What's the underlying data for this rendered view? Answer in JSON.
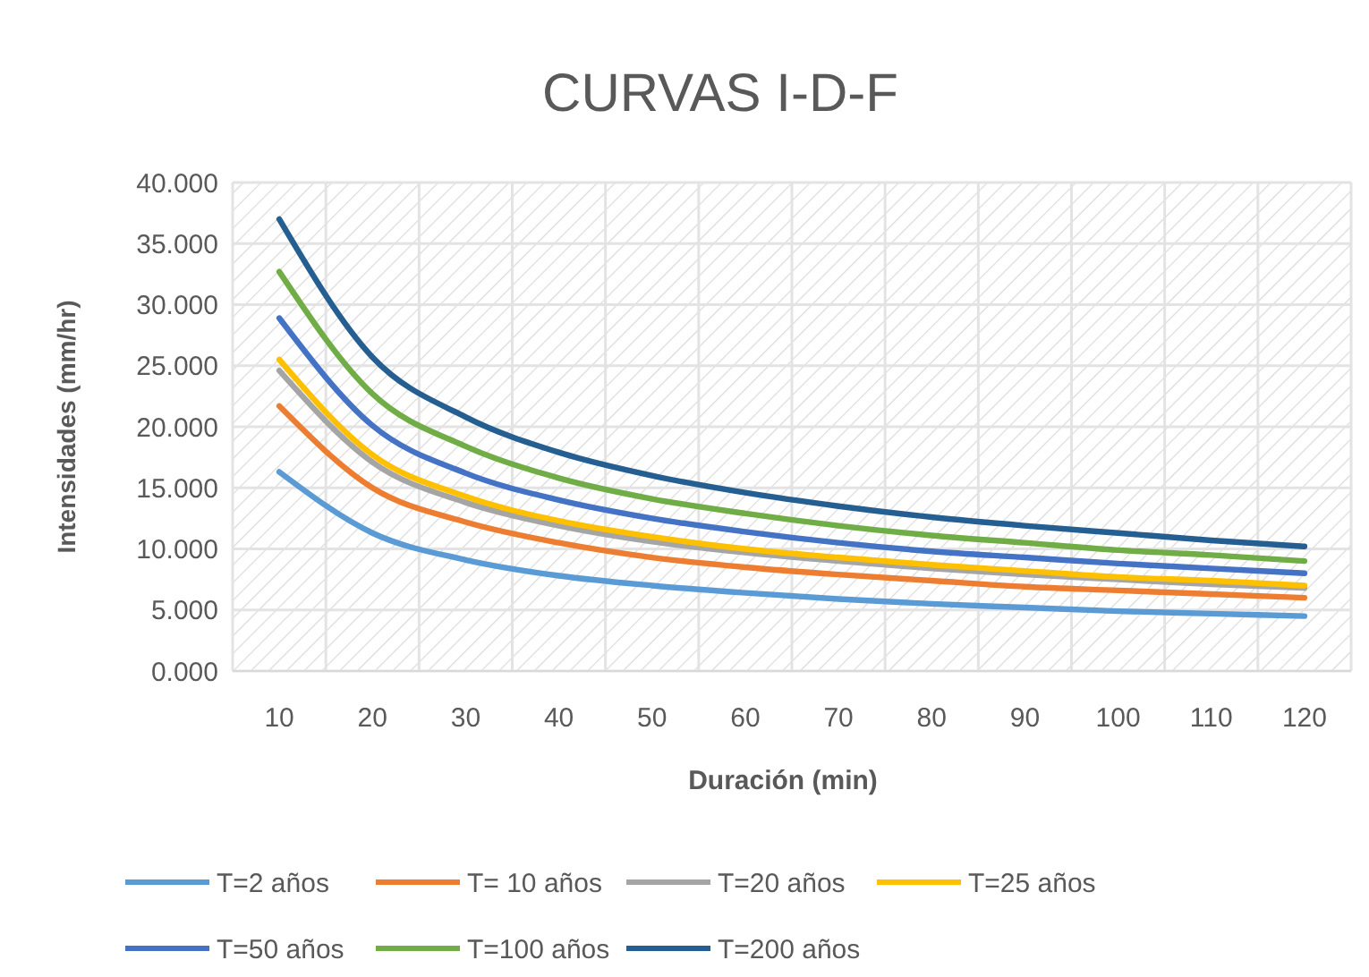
{
  "chart_data": {
    "type": "line",
    "title": "CURVAS I-D-F",
    "xlabel": "Duración (min)",
    "ylabel": "Intensidades (mm/hr)",
    "categories": [
      "10",
      "20",
      "30",
      "40",
      "50",
      "60",
      "70",
      "80",
      "90",
      "100",
      "110",
      "120"
    ],
    "series": [
      {
        "name": "T=2 años",
        "color": "#5b9bd5",
        "values": [
          16.3,
          11.3,
          9.1,
          7.8,
          7.0,
          6.4,
          5.9,
          5.5,
          5.2,
          4.9,
          4.7,
          4.5
        ]
      },
      {
        "name": "T= 10 años",
        "color": "#ed7d31",
        "values": [
          21.7,
          15.0,
          12.2,
          10.5,
          9.3,
          8.5,
          7.9,
          7.4,
          6.9,
          6.6,
          6.3,
          6.0
        ]
      },
      {
        "name": "T=20 años",
        "color": "#a5a5a5",
        "values": [
          24.6,
          17.1,
          13.8,
          11.9,
          10.6,
          9.7,
          9.0,
          8.4,
          7.9,
          7.5,
          7.1,
          6.8
        ]
      },
      {
        "name": "T=25 años",
        "color": "#ffc000",
        "values": [
          25.5,
          17.7,
          14.3,
          12.3,
          11.0,
          10.0,
          9.3,
          8.7,
          8.2,
          7.7,
          7.4,
          7.0
        ]
      },
      {
        "name": "T=50 años",
        "color": "#4472c4",
        "values": [
          28.9,
          20.1,
          16.2,
          14.0,
          12.5,
          11.4,
          10.5,
          9.8,
          9.3,
          8.8,
          8.4,
          8.0
        ]
      },
      {
        "name": "T=100 años",
        "color": "#70ad47",
        "values": [
          32.7,
          22.7,
          18.4,
          15.8,
          14.1,
          12.9,
          11.9,
          11.1,
          10.5,
          9.9,
          9.5,
          9.0
        ]
      },
      {
        "name": "T=200 años",
        "color": "#255e91",
        "values": [
          37.0,
          25.7,
          20.8,
          17.9,
          16.0,
          14.6,
          13.5,
          12.6,
          11.9,
          11.3,
          10.7,
          10.2
        ]
      }
    ],
    "ylim": [
      0,
      40
    ],
    "yticks": [
      {
        "value": 0,
        "label": "0.000"
      },
      {
        "value": 5,
        "label": "5.000"
      },
      {
        "value": 10,
        "label": "10.000"
      },
      {
        "value": 15,
        "label": "15.000"
      },
      {
        "value": 20,
        "label": "20.000"
      },
      {
        "value": 25,
        "label": "25.000"
      },
      {
        "value": 30,
        "label": "30.000"
      },
      {
        "value": 35,
        "label": "35.000"
      },
      {
        "value": 40,
        "label": "40.000"
      }
    ],
    "grid": true,
    "legend": "bottom",
    "marker": "none",
    "line_style": "solid"
  }
}
